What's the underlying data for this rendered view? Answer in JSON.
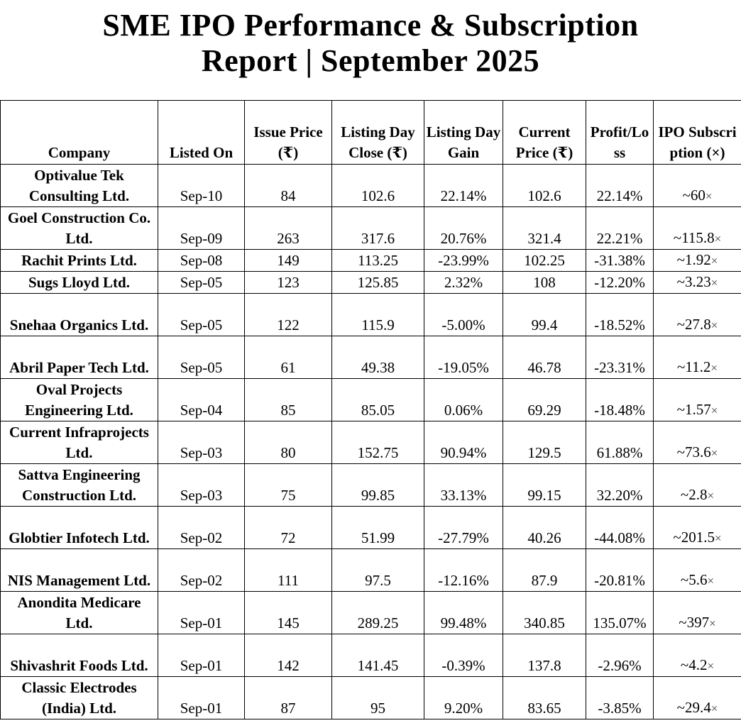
{
  "title_line1": "SME IPO Performance & Subscription",
  "title_line2": "Report | September 2025",
  "headers": [
    "Company",
    "Listed On",
    "Issue Price (₹)",
    "Listing Day Close (₹)",
    "Listing Day Gain",
    "Current Price (₹)",
    "Profit/Loss",
    "IPO Subscription (×)"
  ],
  "rows": [
    {
      "company": "Optivalue Tek Consulting Ltd.",
      "listed_on": "Sep-10",
      "issue_price": "84",
      "listing_close": "102.6",
      "listing_gain": "22.14%",
      "current_price": "102.6",
      "profit_loss": "22.14%",
      "subscription": "~60",
      "sub_suffix": "×",
      "lines": 2
    },
    {
      "company": "Goel Construction Co. Ltd.",
      "listed_on": "Sep-09",
      "issue_price": "263",
      "listing_close": "317.6",
      "listing_gain": "20.76%",
      "current_price": "321.4",
      "profit_loss": "22.21%",
      "subscription": "~115.8",
      "sub_suffix": "×",
      "lines": 2
    },
    {
      "company": "Rachit Prints Ltd.",
      "listed_on": "Sep-08",
      "issue_price": "149",
      "listing_close": "113.25",
      "listing_gain": "-23.99%",
      "current_price": "102.25",
      "profit_loss": "-31.38%",
      "subscription": "~1.92",
      "sub_suffix": "×",
      "lines": 1
    },
    {
      "company": "Sugs Lloyd Ltd.",
      "listed_on": "Sep-05",
      "issue_price": "123",
      "listing_close": "125.85",
      "listing_gain": "2.32%",
      "current_price": "108",
      "profit_loss": "-12.20%",
      "subscription": "~3.23",
      "sub_suffix": "×",
      "lines": 1
    },
    {
      "company": "Snehaa Organics Ltd.",
      "listed_on": "Sep-05",
      "issue_price": "122",
      "listing_close": "115.9",
      "listing_gain": "-5.00%",
      "current_price": "99.4",
      "profit_loss": "-18.52%",
      "subscription": "~27.8",
      "sub_suffix": "×",
      "lines": 2
    },
    {
      "company": "Abril Paper Tech Ltd.",
      "listed_on": "Sep-05",
      "issue_price": "61",
      "listing_close": "49.38",
      "listing_gain": "-19.05%",
      "current_price": "46.78",
      "profit_loss": "-23.31%",
      "subscription": "~11.2",
      "sub_suffix": "×",
      "lines": 2
    },
    {
      "company": "Oval Projects Engineering Ltd.",
      "listed_on": "Sep-04",
      "issue_price": "85",
      "listing_close": "85.05",
      "listing_gain": "0.06%",
      "current_price": "69.29",
      "profit_loss": "-18.48%",
      "subscription": "~1.57",
      "sub_suffix": "×",
      "lines": 2
    },
    {
      "company": "Current Infraprojects Ltd.",
      "listed_on": "Sep-03",
      "issue_price": "80",
      "listing_close": "152.75",
      "listing_gain": "90.94%",
      "current_price": "129.5",
      "profit_loss": "61.88%",
      "subscription": "~73.6",
      "sub_suffix": "×",
      "lines": 2
    },
    {
      "company": "Sattva Engineering Construction Ltd.",
      "listed_on": "Sep-03",
      "issue_price": "75",
      "listing_close": "99.85",
      "listing_gain": "33.13%",
      "current_price": "99.15",
      "profit_loss": "32.20%",
      "subscription": "~2.8",
      "sub_suffix": "×",
      "lines": 2
    },
    {
      "company": "Globtier Infotech Ltd.",
      "listed_on": "Sep-02",
      "issue_price": "72",
      "listing_close": "51.99",
      "listing_gain": "-27.79%",
      "current_price": "40.26",
      "profit_loss": "-44.08%",
      "subscription": "~201.5",
      "sub_suffix": "×",
      "lines": 2
    },
    {
      "company": "NIS Management Ltd.",
      "listed_on": "Sep-02",
      "issue_price": "111",
      "listing_close": "97.5",
      "listing_gain": "-12.16%",
      "current_price": "87.9",
      "profit_loss": "-20.81%",
      "subscription": "~5.6",
      "sub_suffix": "×",
      "lines": 2
    },
    {
      "company": "Anondita Medicare Ltd.",
      "listed_on": "Sep-01",
      "issue_price": "145",
      "listing_close": "289.25",
      "listing_gain": "99.48%",
      "current_price": "340.85",
      "profit_loss": "135.07%",
      "subscription": "~397",
      "sub_suffix": "×",
      "lines": 2
    },
    {
      "company": "Shivashrit Foods Ltd.",
      "listed_on": "Sep-01",
      "issue_price": "142",
      "listing_close": "141.45",
      "listing_gain": "-0.39%",
      "current_price": "137.8",
      "profit_loss": "-2.96%",
      "subscription": "~4.2",
      "sub_suffix": "×",
      "lines": 2
    },
    {
      "company": "Classic Electrodes (India) Ltd.",
      "listed_on": "Sep-01",
      "issue_price": "87",
      "listing_close": "95",
      "listing_gain": "9.20%",
      "current_price": "83.65",
      "profit_loss": "-3.85%",
      "subscription": "~29.4",
      "sub_suffix": "×",
      "lines": 2
    }
  ]
}
